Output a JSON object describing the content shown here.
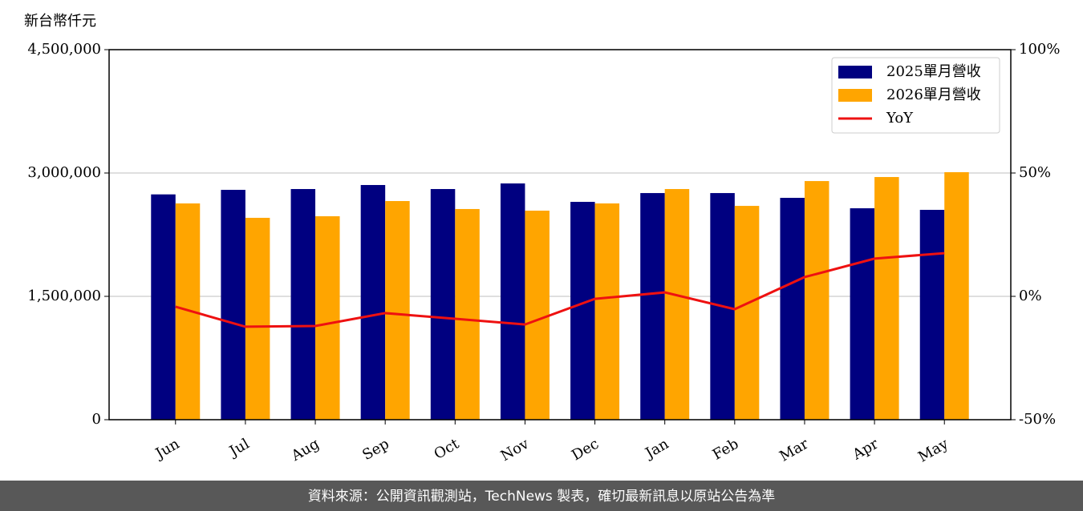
{
  "chart_data": {
    "type": "bar_line",
    "y_label": "新台幣仟元",
    "categories": [
      "Jun",
      "Jul",
      "Aug",
      "Sep",
      "Oct",
      "Nov",
      "Dec",
      "Jan",
      "Feb",
      "Mar",
      "Apr",
      "May"
    ],
    "series": [
      {
        "name": "2025單月營收",
        "type": "bar",
        "color": "#000080",
        "values": [
          2740000,
          2795000,
          2805000,
          2854000,
          2805000,
          2873000,
          2649000,
          2756000,
          2756000,
          2698000,
          2571000,
          2552000
        ]
      },
      {
        "name": "2026單月營收",
        "type": "bar",
        "color": "#ffa500",
        "values": [
          2630000,
          2455000,
          2474000,
          2659000,
          2562000,
          2542000,
          2630000,
          2805000,
          2600000,
          2902000,
          2951000,
          3010000
        ]
      },
      {
        "name": "YoY",
        "type": "line",
        "axis": "y2",
        "color": "#ee1111",
        "values": [
          -4.2,
          -12.3,
          -12.0,
          -6.8,
          -9.1,
          -11.4,
          -1.0,
          1.6,
          -5.2,
          7.8,
          15.3,
          17.5
        ]
      }
    ],
    "ylim": [
      0,
      4500000
    ],
    "yticks": [
      {
        "value": 0,
        "label": "0"
      },
      {
        "value": 1500000,
        "label": "1,500,000"
      },
      {
        "value": 3000000,
        "label": "3,000,000"
      },
      {
        "value": 4500000,
        "label": "4,500,000"
      }
    ],
    "y2lim": [
      -50,
      100
    ],
    "y2ticks": [
      {
        "value": -50,
        "label": "-50%"
      },
      {
        "value": 0,
        "label": "0%"
      },
      {
        "value": 50,
        "label": "50%"
      },
      {
        "value": 100,
        "label": "100%"
      }
    ],
    "grid": true,
    "legend": "upper right"
  },
  "footer": "資料來源：公開資訊觀測站，TechNews 製表，確切最新訊息以原站公告為準"
}
